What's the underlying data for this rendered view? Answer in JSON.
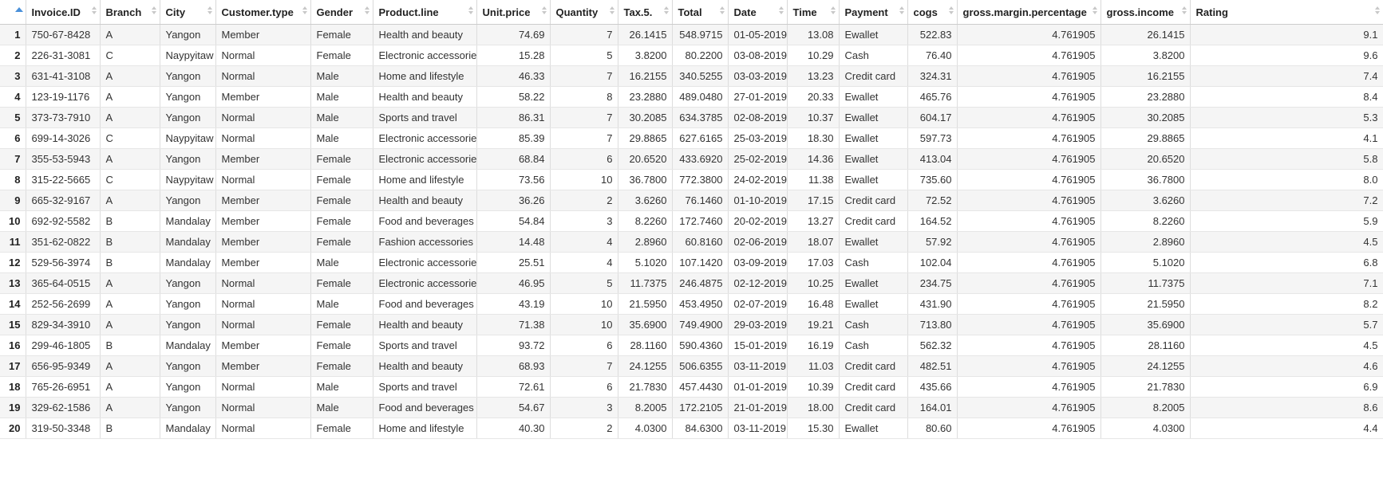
{
  "table": {
    "columns": [
      {
        "label": "Invoice.ID",
        "align": "left"
      },
      {
        "label": "Branch",
        "align": "left"
      },
      {
        "label": "City",
        "align": "left"
      },
      {
        "label": "Customer.type",
        "align": "left"
      },
      {
        "label": "Gender",
        "align": "left"
      },
      {
        "label": "Product.line",
        "align": "left"
      },
      {
        "label": "Unit.price",
        "align": "right"
      },
      {
        "label": "Quantity",
        "align": "right"
      },
      {
        "label": "Tax.5.",
        "align": "right"
      },
      {
        "label": "Total",
        "align": "right"
      },
      {
        "label": "Date",
        "align": "left"
      },
      {
        "label": "Time",
        "align": "right"
      },
      {
        "label": "Payment",
        "align": "left"
      },
      {
        "label": "cogs",
        "align": "right"
      },
      {
        "label": "gross.margin.percentage",
        "align": "right"
      },
      {
        "label": "gross.income",
        "align": "right"
      },
      {
        "label": "Rating",
        "align": "right"
      }
    ],
    "rows": [
      {
        "index": "1",
        "cells": [
          "750-67-8428",
          "A",
          "Yangon",
          "Member",
          "Female",
          "Health and beauty",
          "74.69",
          "7",
          "26.1415",
          "548.9715",
          "01-05-2019",
          "13.08",
          "Ewallet",
          "522.83",
          "4.761905",
          "26.1415",
          "9.1"
        ]
      },
      {
        "index": "2",
        "cells": [
          "226-31-3081",
          "C",
          "Naypyitaw",
          "Normal",
          "Female",
          "Electronic accessories",
          "15.28",
          "5",
          "3.8200",
          "80.2200",
          "03-08-2019",
          "10.29",
          "Cash",
          "76.40",
          "4.761905",
          "3.8200",
          "9.6"
        ]
      },
      {
        "index": "3",
        "cells": [
          "631-41-3108",
          "A",
          "Yangon",
          "Normal",
          "Male",
          "Home and lifestyle",
          "46.33",
          "7",
          "16.2155",
          "340.5255",
          "03-03-2019",
          "13.23",
          "Credit card",
          "324.31",
          "4.761905",
          "16.2155",
          "7.4"
        ]
      },
      {
        "index": "4",
        "cells": [
          "123-19-1176",
          "A",
          "Yangon",
          "Member",
          "Male",
          "Health and beauty",
          "58.22",
          "8",
          "23.2880",
          "489.0480",
          "27-01-2019",
          "20.33",
          "Ewallet",
          "465.76",
          "4.761905",
          "23.2880",
          "8.4"
        ]
      },
      {
        "index": "5",
        "cells": [
          "373-73-7910",
          "A",
          "Yangon",
          "Normal",
          "Male",
          "Sports and travel",
          "86.31",
          "7",
          "30.2085",
          "634.3785",
          "02-08-2019",
          "10.37",
          "Ewallet",
          "604.17",
          "4.761905",
          "30.2085",
          "5.3"
        ]
      },
      {
        "index": "6",
        "cells": [
          "699-14-3026",
          "C",
          "Naypyitaw",
          "Normal",
          "Male",
          "Electronic accessories",
          "85.39",
          "7",
          "29.8865",
          "627.6165",
          "25-03-2019",
          "18.30",
          "Ewallet",
          "597.73",
          "4.761905",
          "29.8865",
          "4.1"
        ]
      },
      {
        "index": "7",
        "cells": [
          "355-53-5943",
          "A",
          "Yangon",
          "Member",
          "Female",
          "Electronic accessories",
          "68.84",
          "6",
          "20.6520",
          "433.6920",
          "25-02-2019",
          "14.36",
          "Ewallet",
          "413.04",
          "4.761905",
          "20.6520",
          "5.8"
        ]
      },
      {
        "index": "8",
        "cells": [
          "315-22-5665",
          "C",
          "Naypyitaw",
          "Normal",
          "Female",
          "Home and lifestyle",
          "73.56",
          "10",
          "36.7800",
          "772.3800",
          "24-02-2019",
          "11.38",
          "Ewallet",
          "735.60",
          "4.761905",
          "36.7800",
          "8.0"
        ]
      },
      {
        "index": "9",
        "cells": [
          "665-32-9167",
          "A",
          "Yangon",
          "Member",
          "Female",
          "Health and beauty",
          "36.26",
          "2",
          "3.6260",
          "76.1460",
          "01-10-2019",
          "17.15",
          "Credit card",
          "72.52",
          "4.761905",
          "3.6260",
          "7.2"
        ]
      },
      {
        "index": "10",
        "cells": [
          "692-92-5582",
          "B",
          "Mandalay",
          "Member",
          "Female",
          "Food and beverages",
          "54.84",
          "3",
          "8.2260",
          "172.7460",
          "20-02-2019",
          "13.27",
          "Credit card",
          "164.52",
          "4.761905",
          "8.2260",
          "5.9"
        ]
      },
      {
        "index": "11",
        "cells": [
          "351-62-0822",
          "B",
          "Mandalay",
          "Member",
          "Female",
          "Fashion accessories",
          "14.48",
          "4",
          "2.8960",
          "60.8160",
          "02-06-2019",
          "18.07",
          "Ewallet",
          "57.92",
          "4.761905",
          "2.8960",
          "4.5"
        ]
      },
      {
        "index": "12",
        "cells": [
          "529-56-3974",
          "B",
          "Mandalay",
          "Member",
          "Male",
          "Electronic accessories",
          "25.51",
          "4",
          "5.1020",
          "107.1420",
          "03-09-2019",
          "17.03",
          "Cash",
          "102.04",
          "4.761905",
          "5.1020",
          "6.8"
        ]
      },
      {
        "index": "13",
        "cells": [
          "365-64-0515",
          "A",
          "Yangon",
          "Normal",
          "Female",
          "Electronic accessories",
          "46.95",
          "5",
          "11.7375",
          "246.4875",
          "02-12-2019",
          "10.25",
          "Ewallet",
          "234.75",
          "4.761905",
          "11.7375",
          "7.1"
        ]
      },
      {
        "index": "14",
        "cells": [
          "252-56-2699",
          "A",
          "Yangon",
          "Normal",
          "Male",
          "Food and beverages",
          "43.19",
          "10",
          "21.5950",
          "453.4950",
          "02-07-2019",
          "16.48",
          "Ewallet",
          "431.90",
          "4.761905",
          "21.5950",
          "8.2"
        ]
      },
      {
        "index": "15",
        "cells": [
          "829-34-3910",
          "A",
          "Yangon",
          "Normal",
          "Female",
          "Health and beauty",
          "71.38",
          "10",
          "35.6900",
          "749.4900",
          "29-03-2019",
          "19.21",
          "Cash",
          "713.80",
          "4.761905",
          "35.6900",
          "5.7"
        ]
      },
      {
        "index": "16",
        "cells": [
          "299-46-1805",
          "B",
          "Mandalay",
          "Member",
          "Female",
          "Sports and travel",
          "93.72",
          "6",
          "28.1160",
          "590.4360",
          "15-01-2019",
          "16.19",
          "Cash",
          "562.32",
          "4.761905",
          "28.1160",
          "4.5"
        ]
      },
      {
        "index": "17",
        "cells": [
          "656-95-9349",
          "A",
          "Yangon",
          "Member",
          "Female",
          "Health and beauty",
          "68.93",
          "7",
          "24.1255",
          "506.6355",
          "03-11-2019",
          "11.03",
          "Credit card",
          "482.51",
          "4.761905",
          "24.1255",
          "4.6"
        ]
      },
      {
        "index": "18",
        "cells": [
          "765-26-6951",
          "A",
          "Yangon",
          "Normal",
          "Male",
          "Sports and travel",
          "72.61",
          "6",
          "21.7830",
          "457.4430",
          "01-01-2019",
          "10.39",
          "Credit card",
          "435.66",
          "4.761905",
          "21.7830",
          "6.9"
        ]
      },
      {
        "index": "19",
        "cells": [
          "329-62-1586",
          "A",
          "Yangon",
          "Normal",
          "Male",
          "Food and beverages",
          "54.67",
          "3",
          "8.2005",
          "172.2105",
          "21-01-2019",
          "18.00",
          "Credit card",
          "164.01",
          "4.761905",
          "8.2005",
          "8.6"
        ]
      },
      {
        "index": "20",
        "cells": [
          "319-50-3348",
          "B",
          "Mandalay",
          "Normal",
          "Female",
          "Home and lifestyle",
          "40.30",
          "2",
          "4.0300",
          "84.6300",
          "03-11-2019",
          "15.30",
          "Ewallet",
          "80.60",
          "4.761905",
          "4.0300",
          "4.4"
        ]
      }
    ]
  }
}
